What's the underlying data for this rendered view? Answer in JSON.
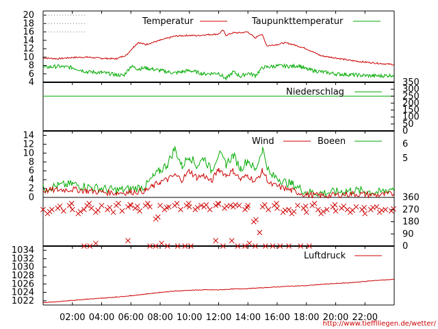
{
  "chart_data": [
    {
      "type": "line",
      "id": "temp",
      "ylim": [
        4,
        21
      ],
      "yticks": [
        "4",
        "6",
        "8",
        "10",
        "12",
        "14",
        "16",
        "18",
        "20"
      ],
      "grid": "dotted top-left only",
      "legend": "top",
      "series": [
        {
          "name": "Temperatur",
          "color": "#cc0000",
          "x": [
            0,
            1,
            2,
            3,
            4,
            5,
            5.7,
            6.2,
            6.5,
            7,
            8,
            9,
            10,
            10.5,
            11,
            12,
            12.3,
            12.5,
            13,
            13.5,
            14,
            14.5,
            14.8,
            15,
            15.3,
            16,
            16.5,
            17,
            18,
            19,
            20,
            21,
            22,
            23,
            24
          ],
          "y": [
            9.8,
            9.6,
            9.9,
            10,
            9.7,
            9.6,
            10.5,
            12.5,
            13.5,
            13,
            14,
            15,
            15.2,
            15.1,
            15.3,
            15.5,
            16.4,
            15.2,
            15.8,
            15.8,
            16,
            14.5,
            15.4,
            15.2,
            12.7,
            13,
            13.4,
            13.1,
            12,
            10.3,
            9.8,
            9.2,
            8.8,
            8.5,
            8.2
          ]
        },
        {
          "name": "Taupunkttemperatur",
          "color": "#00aa00",
          "x": [
            0,
            1,
            2,
            3,
            4,
            5,
            5.5,
            6,
            6.5,
            7,
            8,
            9,
            10,
            11,
            12,
            12.5,
            13,
            13.5,
            14,
            14.5,
            15,
            16,
            17,
            17.5,
            18,
            19,
            20,
            21,
            22,
            23,
            24
          ],
          "y": [
            7.5,
            7.8,
            7.5,
            6.5,
            6.3,
            5.8,
            5.6,
            7.8,
            7.2,
            7.4,
            6.8,
            6.2,
            6.8,
            6,
            6.2,
            4.8,
            6.5,
            5.4,
            6.2,
            5.6,
            7.5,
            7.9,
            7.8,
            8,
            7.1,
            6.5,
            6,
            5.8,
            5.6,
            5.5,
            5.7
          ]
        }
      ]
    },
    {
      "type": "line",
      "id": "rain",
      "ylim": [
        0,
        350
      ],
      "yticks": [
        "0",
        "50",
        "100",
        "150",
        "200",
        "250",
        "300",
        "350"
      ],
      "legend": "top-right",
      "series": [
        {
          "name": "Niederschlag",
          "color": "#00aa00",
          "x": [
            0,
            24
          ],
          "y": [
            250,
            250
          ]
        }
      ]
    },
    {
      "type": "line",
      "id": "wind",
      "ylim": [
        0,
        15
      ],
      "yticks": [
        "0",
        "2",
        "4",
        "6",
        "8",
        "10",
        "12",
        "14"
      ],
      "right_ticks": [
        "5",
        "6"
      ],
      "legend": "top",
      "series": [
        {
          "name": "Wind",
          "color": "#cc0000",
          "x": [
            0,
            1,
            2,
            3,
            4,
            5,
            6,
            7,
            7.5,
            8,
            8.5,
            9,
            9.5,
            10,
            10.5,
            11,
            11.5,
            12,
            12.5,
            13,
            13.5,
            14,
            14.5,
            15,
            15.5,
            16,
            16.5,
            17,
            18,
            19,
            20,
            21,
            22,
            23,
            24
          ],
          "y": [
            1.5,
            1.7,
            1.8,
            1.5,
            1.2,
            1.0,
            1.2,
            1.5,
            2.5,
            3.5,
            4.0,
            5.0,
            4.0,
            6.0,
            4.5,
            5.0,
            3.5,
            6.5,
            5.0,
            6.0,
            4.0,
            5.0,
            3.5,
            6.0,
            3.0,
            2.5,
            2.0,
            1.5,
            0.6,
            0.4,
            0.5,
            0.8,
            0.7,
            0.5,
            0.8
          ]
        },
        {
          "name": "Boeen",
          "color": "#00aa00",
          "x": [
            0,
            1,
            2,
            3,
            4,
            5,
            6,
            7,
            7.5,
            8,
            8.5,
            9,
            9.5,
            10,
            10.5,
            11,
            11.5,
            12,
            12.5,
            13,
            13.5,
            14,
            14.5,
            15,
            15.5,
            16,
            16.5,
            17,
            18,
            19,
            20,
            21,
            22,
            23,
            24
          ],
          "y": [
            2.0,
            2.6,
            3.0,
            2.4,
            2.0,
            1.6,
            1.9,
            2.5,
            4.5,
            6.0,
            7.5,
            11.0,
            7.0,
            9.5,
            7.0,
            9.0,
            6.0,
            10.0,
            7.5,
            9.5,
            6.5,
            8.5,
            6.0,
            11.0,
            5.0,
            4.5,
            3.5,
            3.0,
            1.2,
            1.0,
            1.2,
            1.6,
            1.4,
            1.1,
            2.2
          ]
        }
      ]
    },
    {
      "type": "scatter",
      "id": "direction",
      "ylim": [
        0,
        360
      ],
      "yticks": [
        "0",
        "90",
        "180",
        "270",
        "360"
      ],
      "series": [
        {
          "marker": "x",
          "color": "#cc0000",
          "x": [
            0,
            0.3,
            0.6,
            1,
            1.4,
            1.8,
            2,
            2.4,
            2.8,
            3,
            3.3,
            3.6,
            4,
            4.4,
            4.8,
            5,
            5.4,
            5.8,
            6,
            6.3,
            6.6,
            7,
            7.3,
            7.7,
            8,
            8.3,
            8.6,
            9,
            9.4,
            9.8,
            10,
            10.4,
            10.8,
            11,
            11.4,
            11.8,
            12,
            12.4,
            12.8,
            13,
            13.4,
            13.8,
            14,
            14.4,
            14.8,
            15,
            15.4,
            15.8,
            16,
            16.4,
            16.8,
            17,
            17.4,
            17.8,
            18,
            18.4,
            18.8,
            19,
            19.4,
            19.8,
            20,
            20.4,
            20.8,
            21,
            21.4,
            21.8,
            22,
            22.4,
            22.8,
            23,
            23.4,
            23.8
          ],
          "y": [
            270,
            240,
            270,
            280,
            260,
            300,
            270,
            240,
            270,
            300,
            280,
            250,
            300,
            270,
            250,
            300,
            260,
            290,
            300,
            280,
            260,
            300,
            290,
            200,
            300,
            270,
            290,
            300,
            270,
            300,
            290,
            270,
            300,
            290,
            270,
            300,
            310,
            280,
            300,
            290,
            300,
            270,
            300,
            180,
            100,
            290,
            270,
            300,
            280,
            250,
            270,
            240,
            300,
            280,
            250,
            300,
            270,
            240,
            270,
            290,
            260,
            280,
            270,
            250,
            290,
            270,
            240,
            270,
            290,
            250,
            270,
            260
          ],
          "extra_x": [
            2.8,
            3.2,
            3.6,
            5.8,
            7.3,
            7.7,
            8.1,
            8.5,
            9.2,
            9.7,
            10.1,
            11.8,
            12.3,
            12.9,
            13.3,
            13.8,
            14.1,
            14.5,
            15.2,
            15.7,
            16.2,
            16.8,
            17.6,
            18.2
          ],
          "extra_y": [
            0,
            0,
            20,
            40,
            0,
            0,
            20,
            0,
            0,
            0,
            0,
            40,
            0,
            40,
            0,
            0,
            20,
            0,
            0,
            0,
            0,
            0,
            0,
            0
          ]
        }
      ]
    },
    {
      "type": "line",
      "id": "pressure",
      "ylim": [
        1021,
        1035
      ],
      "yticks": [
        "1022",
        "1024",
        "1026",
        "1028",
        "1030",
        "1032",
        "1034"
      ],
      "legend": "top-right",
      "series": [
        {
          "name": "Luftdruck",
          "color": "#cc0000",
          "x": [
            0,
            1,
            2,
            3,
            4,
            5,
            6,
            7,
            8,
            9,
            10,
            11,
            12,
            13,
            14,
            15,
            16,
            17,
            18,
            19,
            20,
            21,
            22,
            23,
            24
          ],
          "y": [
            1021.6,
            1021.8,
            1022.1,
            1022.4,
            1022.6,
            1022.9,
            1023.2,
            1023.6,
            1024.0,
            1024.3,
            1024.5,
            1024.6,
            1024.6,
            1024.8,
            1024.9,
            1025.1,
            1025.3,
            1025.5,
            1025.6,
            1025.9,
            1026.1,
            1026.3,
            1026.6,
            1026.9,
            1027.1
          ]
        }
      ]
    }
  ],
  "x_axis": {
    "type": "time",
    "range_hours": [
      0,
      24
    ],
    "tick_labels": [
      "02:00",
      "04:00",
      "06:00",
      "08:00",
      "10:00",
      "12:00",
      "14:00",
      "16:00",
      "18:00",
      "20:00",
      "22:00"
    ]
  },
  "footer": {
    "url": "http://www.tiefflliegen.de/wetter/"
  }
}
